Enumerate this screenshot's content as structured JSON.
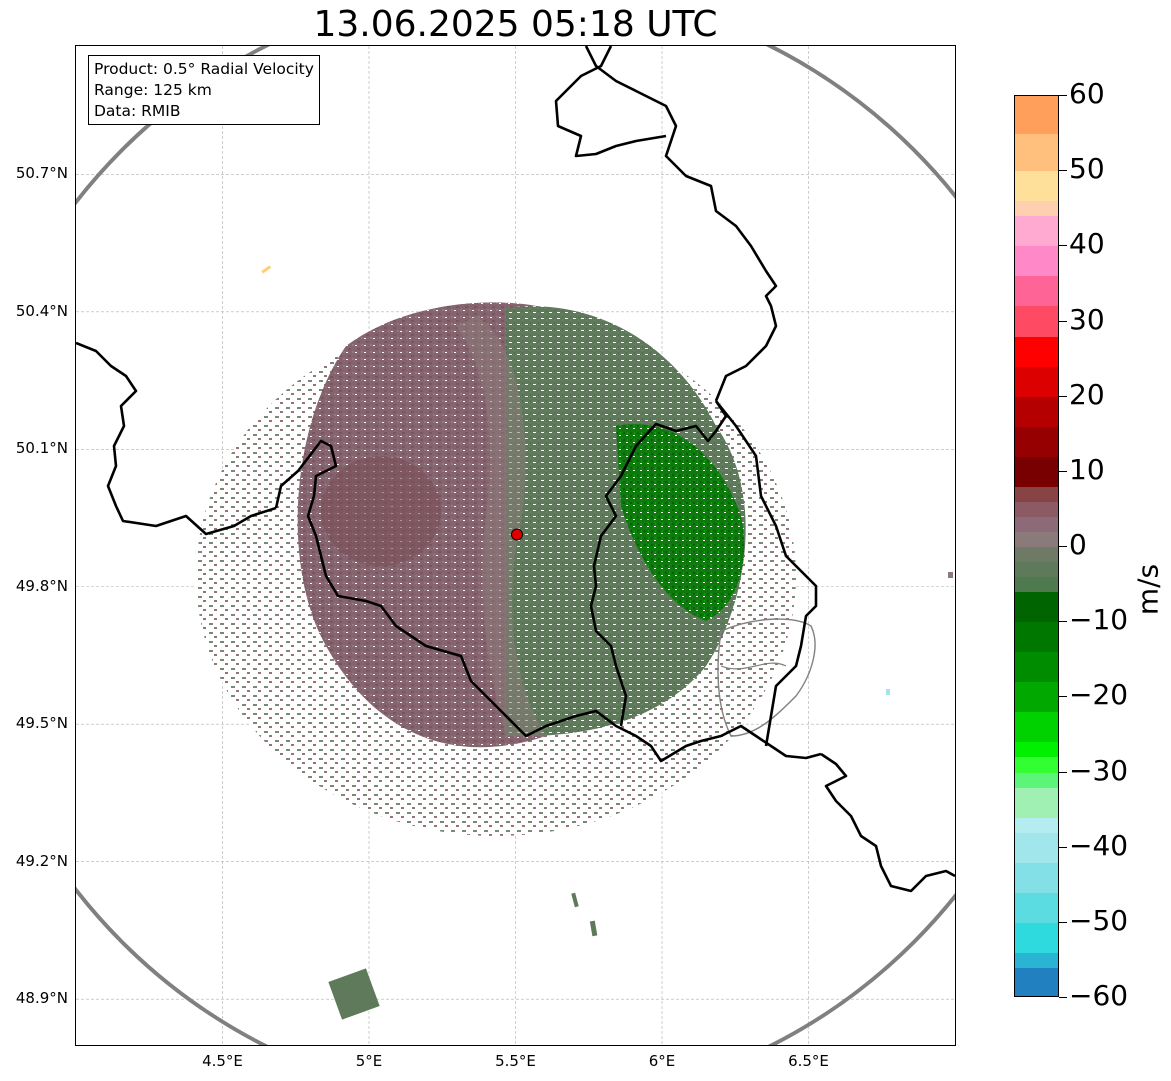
{
  "title": "13.06.2025 05:18 UTC",
  "info": {
    "lines": [
      "Product: 0.5° Radial Velocity",
      "Range: 125 km",
      "Data: RMIB"
    ]
  },
  "map": {
    "lat_labels": [
      "50.7°N",
      "50.4°N",
      "50.1°N",
      "49.8°N",
      "49.5°N",
      "49.2°N",
      "48.9°N"
    ],
    "lon_labels": [
      "4.5°E",
      "5°E",
      "5.5°E",
      "6°E",
      "6.5°E"
    ],
    "lat_values": [
      50.7,
      50.4,
      50.1,
      49.8,
      49.5,
      49.2,
      48.9
    ],
    "lon_values": [
      4.5,
      5.0,
      5.5,
      6.0,
      6.5
    ],
    "extent": {
      "lon": [
        4.0,
        7.0
      ],
      "lat": [
        48.8,
        50.98
      ]
    },
    "radar_site": {
      "lon": 5.505,
      "lat": 49.914
    },
    "range_ring_color": "#808080",
    "border_color": "#000000",
    "gridline": "dashed grey"
  },
  "colorbar": {
    "unit": "m/s",
    "ticks": [
      "60",
      "50",
      "40",
      "30",
      "20",
      "10",
      "0",
      "−10",
      "−20",
      "−30",
      "−40",
      "−50",
      "−60"
    ],
    "range": [
      -60,
      60
    ],
    "colors": [
      {
        "from": 55,
        "to": 60,
        "color": "#ff9f5b"
      },
      {
        "from": 50,
        "to": 55,
        "color": "#ffc07e"
      },
      {
        "from": 46,
        "to": 50,
        "color": "#ffe09a"
      },
      {
        "from": 44,
        "to": 46,
        "color": "#ffd0b0"
      },
      {
        "from": 40,
        "to": 44,
        "color": "#ffaad0"
      },
      {
        "from": 36,
        "to": 40,
        "color": "#ff88c8"
      },
      {
        "from": 32,
        "to": 36,
        "color": "#ff6496"
      },
      {
        "from": 28,
        "to": 32,
        "color": "#ff4a64"
      },
      {
        "from": 24,
        "to": 28,
        "color": "#ff0000"
      },
      {
        "from": 20,
        "to": 24,
        "color": "#dc0000"
      },
      {
        "from": 16,
        "to": 20,
        "color": "#b40000"
      },
      {
        "from": 12,
        "to": 16,
        "color": "#960000"
      },
      {
        "from": 8,
        "to": 12,
        "color": "#780000"
      },
      {
        "from": 6,
        "to": 8,
        "color": "#884444"
      },
      {
        "from": 4,
        "to": 6,
        "color": "#8c5a64"
      },
      {
        "from": 2,
        "to": 4,
        "color": "#8c6a78"
      },
      {
        "from": 0,
        "to": 2,
        "color": "#8a7a7a"
      },
      {
        "from": -2,
        "to": 0,
        "color": "#6e7a66"
      },
      {
        "from": -4,
        "to": -2,
        "color": "#5e7a5a"
      },
      {
        "from": -6,
        "to": -4,
        "color": "#4f7a4f"
      },
      {
        "from": -10,
        "to": -6,
        "color": "#006400"
      },
      {
        "from": -14,
        "to": -10,
        "color": "#007800"
      },
      {
        "from": -18,
        "to": -14,
        "color": "#008c00"
      },
      {
        "from": -22,
        "to": -18,
        "color": "#00a800"
      },
      {
        "from": -26,
        "to": -22,
        "color": "#00d200"
      },
      {
        "from": -28,
        "to": -26,
        "color": "#00f000"
      },
      {
        "from": -30,
        "to": -28,
        "color": "#32ff32"
      },
      {
        "from": -32,
        "to": -30,
        "color": "#5cf57a"
      },
      {
        "from": -36,
        "to": -32,
        "color": "#a0f0b4"
      },
      {
        "from": -38,
        "to": -36,
        "color": "#b4ecf0"
      },
      {
        "from": -42,
        "to": -38,
        "color": "#a0e6ea"
      },
      {
        "from": -46,
        "to": -42,
        "color": "#82e0e6"
      },
      {
        "from": -50,
        "to": -46,
        "color": "#5adce0"
      },
      {
        "from": -54,
        "to": -50,
        "color": "#2edade"
      },
      {
        "from": -56,
        "to": -54,
        "color": "#28b4d2"
      },
      {
        "from": -60,
        "to": -56,
        "color": "#2080c0"
      }
    ]
  }
}
